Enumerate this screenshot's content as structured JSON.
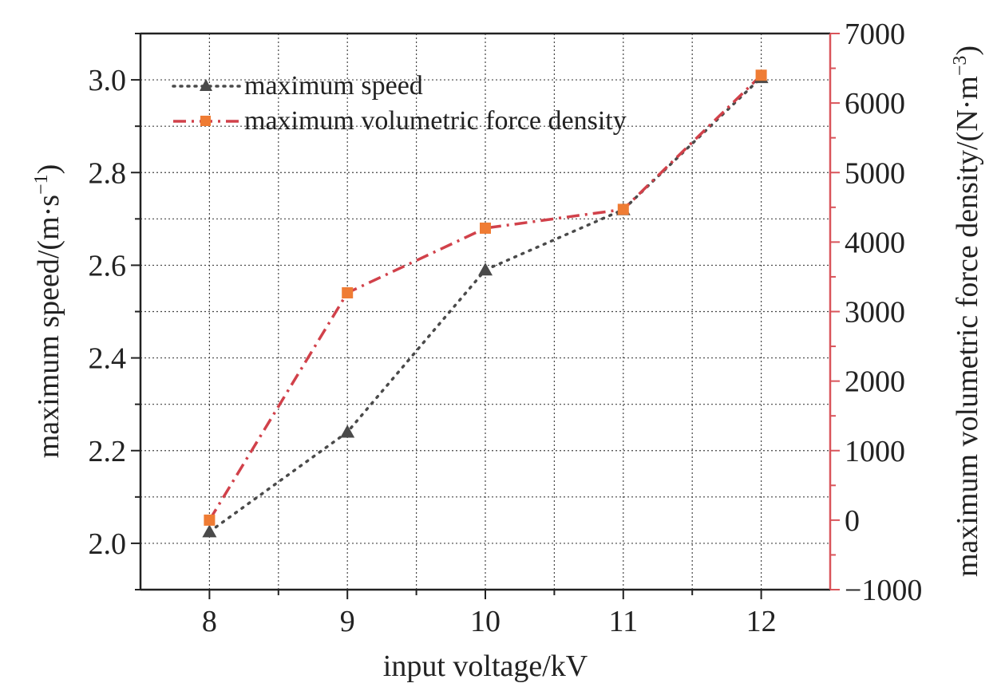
{
  "chart_data": {
    "type": "line",
    "xlabel": "input voltage/kV",
    "ylabel_left": "maximum speed/(m·s",
    "ylabel_left_sup": "−1",
    "ylabel_left_tail": ")",
    "ylabel_right": "maximum volumetric force density/(N·m",
    "ylabel_right_sup": "−3",
    "ylabel_right_tail": ")",
    "x": [
      8,
      9,
      10,
      11,
      12
    ],
    "xlim": [
      7.5,
      12.5
    ],
    "x_ticks": [
      "8",
      "9",
      "10",
      "11",
      "12"
    ],
    "ylim_left": [
      1.9,
      3.1
    ],
    "y_left_ticks": [
      "2.0",
      "2.2",
      "2.4",
      "2.6",
      "2.8",
      "3.0"
    ],
    "ylim_right": [
      -1000,
      7000
    ],
    "y_right_ticks": [
      "−1000",
      "0",
      "1000",
      "2000",
      "3000",
      "4000",
      "5000",
      "6000",
      "7000"
    ],
    "grid": true,
    "legend_position": "top-left",
    "series": [
      {
        "name": "maximum speed",
        "axis": "left",
        "values": [
          2.025,
          2.24,
          2.59,
          2.72,
          3.005
        ],
        "color": "#4a4a4a",
        "marker": "triangle",
        "line_style": "dotted"
      },
      {
        "name": "maximum volumetric force density",
        "axis": "right",
        "values": [
          0,
          3270,
          4200,
          4470,
          6400
        ],
        "color": "#d1414a",
        "marker_color": "#ef7c34",
        "marker": "square",
        "line_style": "dash-dot"
      }
    ],
    "colors": {
      "right_axis": "#d9545a",
      "grid": "#444444",
      "axis": "#222222"
    }
  }
}
